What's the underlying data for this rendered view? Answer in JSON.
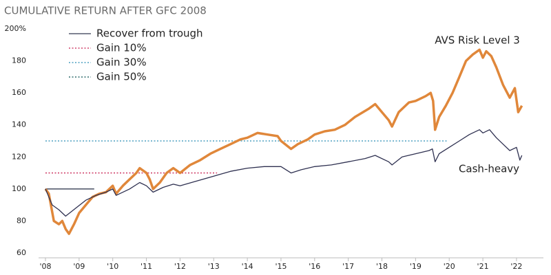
{
  "chart_data": {
    "type": "line",
    "title": "CUMULATIVE RETURN AFTER GFC 2008",
    "xlim": [
      2008,
      2022.8
    ],
    "xticks": [
      {
        "value": 2008,
        "label": "'08"
      },
      {
        "value": 2009,
        "label": "'09"
      },
      {
        "value": 2010,
        "label": "'10"
      },
      {
        "value": 2011,
        "label": "'11"
      },
      {
        "value": 2012,
        "label": "'12"
      },
      {
        "value": 2013,
        "label": "'13"
      },
      {
        "value": 2014,
        "label": "'14"
      },
      {
        "value": 2015,
        "label": "'15"
      },
      {
        "value": 2016,
        "label": "'16"
      },
      {
        "value": 2017,
        "label": "'17"
      },
      {
        "value": 2018,
        "label": "'18"
      },
      {
        "value": 2019,
        "label": "'19"
      },
      {
        "value": 2020,
        "label": "'20"
      },
      {
        "value": 2021,
        "label": "'21"
      },
      {
        "value": 2022,
        "label": "'22"
      }
    ],
    "ylim": [
      60,
      200
    ],
    "yticks": [
      60,
      80,
      100,
      120,
      140,
      160,
      180,
      {
        "value": 200,
        "label": "200%"
      }
    ],
    "series": [
      {
        "name": "AVS Risk Level 3",
        "color": "#e0873a",
        "width": 3.5,
        "x": [
          2008,
          2008.1,
          2008.25,
          2008.4,
          2008.5,
          2008.6,
          2008.7,
          2008.85,
          2009,
          2009.2,
          2009.4,
          2009.6,
          2009.8,
          2010,
          2010.1,
          2010.3,
          2010.5,
          2010.7,
          2010.8,
          2011,
          2011.1,
          2011.2,
          2011.4,
          2011.6,
          2011.8,
          2012,
          2012.3,
          2012.6,
          2012.9,
          2013.2,
          2013.5,
          2013.8,
          2014,
          2014.3,
          2014.6,
          2014.9,
          2015,
          2015.3,
          2015.5,
          2015.8,
          2016,
          2016.3,
          2016.6,
          2016.9,
          2017.2,
          2017.6,
          2017.8,
          2018,
          2018.2,
          2018.3,
          2018.5,
          2018.8,
          2019,
          2019.3,
          2019.45,
          2019.52,
          2019.58,
          2019.7,
          2019.9,
          2020.1,
          2020.3,
          2020.5,
          2020.7,
          2020.9,
          2021,
          2021.1,
          2021.25,
          2021.4,
          2021.6,
          2021.8,
          2021.95,
          2022.05,
          2022.16
        ],
        "values": [
          100,
          97,
          80,
          78,
          80,
          75,
          72,
          78,
          85,
          90,
          95,
          97,
          98,
          102,
          97,
          102,
          106,
          110,
          113,
          110,
          106,
          100,
          104,
          110,
          113,
          110,
          115,
          118,
          122,
          125,
          128,
          131,
          132,
          135,
          134,
          133,
          130,
          125,
          128,
          131,
          134,
          136,
          137,
          140,
          145,
          150,
          153,
          148,
          143,
          139,
          148,
          154,
          155,
          158,
          160,
          155,
          137,
          145,
          152,
          160,
          170,
          180,
          184,
          187,
          182,
          186,
          183,
          176,
          165,
          157,
          163,
          148,
          152
        ]
      },
      {
        "name": "Cash-heavy",
        "color": "#2e3050",
        "width": 1.3,
        "x": [
          2008,
          2008.2,
          2008.4,
          2008.6,
          2008.9,
          2009.2,
          2009.5,
          2009.8,
          2010,
          2010.1,
          2010.5,
          2010.8,
          2011,
          2011.2,
          2011.5,
          2011.8,
          2012,
          2012.5,
          2013,
          2013.5,
          2014,
          2014.5,
          2015,
          2015.3,
          2015.6,
          2016,
          2016.5,
          2017,
          2017.5,
          2017.8,
          2018.2,
          2018.3,
          2018.6,
          2019,
          2019.4,
          2019.5,
          2019.58,
          2019.7,
          2020,
          2020.3,
          2020.6,
          2020.9,
          2021,
          2021.2,
          2021.4,
          2021.6,
          2021.8,
          2022,
          2022.1,
          2022.16
        ],
        "values": [
          100,
          90,
          87,
          83,
          88,
          93,
          96,
          98,
          100,
          96,
          100,
          104,
          102,
          98,
          101,
          103,
          102,
          105,
          108,
          111,
          113,
          114,
          114,
          110,
          112,
          114,
          115,
          117,
          119,
          121,
          117,
          115,
          120,
          122,
          124,
          125,
          117,
          122,
          126,
          130,
          134,
          137,
          135,
          137,
          132,
          128,
          124,
          126,
          118,
          121
        ]
      }
    ],
    "reference_lines": [
      {
        "name": "Recover from trough",
        "color": "#555a6e",
        "dash": "solid",
        "y": 100,
        "x": [
          2008,
          2009.45
        ]
      },
      {
        "name": "Gain 10%",
        "color": "#d0406a",
        "dash": "dotted",
        "y": 110,
        "x": [
          2008,
          2013.1
        ]
      },
      {
        "name": "Gain 30%",
        "color": "#4a9fc0",
        "dash": "dotted",
        "y": 130,
        "x": [
          2008,
          2019.95
        ]
      },
      {
        "name": "Gain 50%",
        "color": "#2e6b6b",
        "dash": "dotted"
      }
    ]
  }
}
